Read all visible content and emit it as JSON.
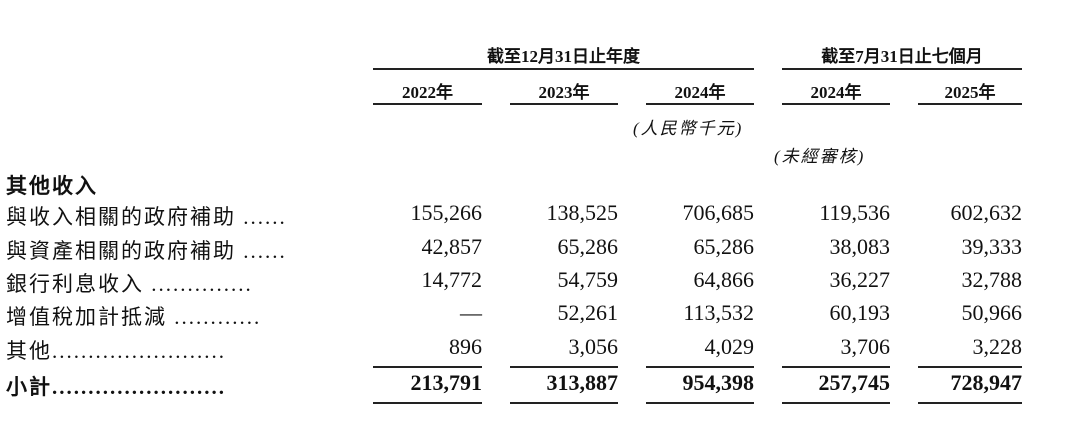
{
  "header": {
    "group1": "截至12月31日止年度",
    "group2": "截至7月31日止七個月",
    "years": [
      "2022年",
      "2023年",
      "2024年",
      "2024年",
      "2025年"
    ],
    "currency_note": "(人民幣千元)",
    "unaudited_note": "(未經審核)"
  },
  "section_title": "其他收入",
  "rows": [
    {
      "label": "與收入相關的政府補助 ......",
      "values": [
        "155,266",
        "138,525",
        "706,685",
        "119,536",
        "602,632"
      ]
    },
    {
      "label": "與資產相關的政府補助 ......",
      "values": [
        "42,857",
        "65,286",
        "65,286",
        "38,083",
        "39,333"
      ]
    },
    {
      "label": "銀行利息收入 ..............",
      "values": [
        "14,772",
        "54,759",
        "64,866",
        "36,227",
        "32,788"
      ]
    },
    {
      "label": "增值稅加計抵減 ............",
      "values": [
        "—",
        "52,261",
        "113,532",
        "60,193",
        "50,966"
      ]
    },
    {
      "label": "其他........................",
      "values": [
        "896",
        "3,056",
        "4,029",
        "3,706",
        "3,228"
      ]
    }
  ],
  "subtotal": {
    "label": "小計........................",
    "values": [
      "213,791",
      "313,887",
      "954,398",
      "257,745",
      "728,947"
    ]
  }
}
